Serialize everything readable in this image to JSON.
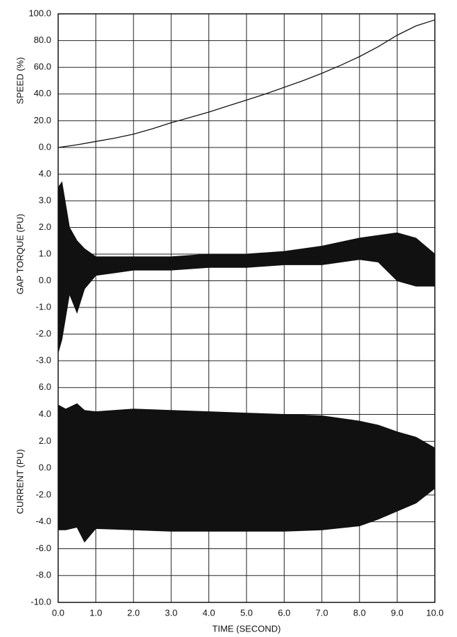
{
  "chart_data": [
    {
      "type": "line",
      "ylabel": "SPEED (%)",
      "xlim": [
        0,
        10
      ],
      "ylim": [
        0,
        100
      ],
      "yticks": [
        {
          "value": 0,
          "label": "0.0"
        },
        {
          "value": 20,
          "label": "20.0"
        },
        {
          "value": 40,
          "label": "40.0"
        },
        {
          "value": 60,
          "label": "60.0"
        },
        {
          "value": 80,
          "label": "80.0"
        },
        {
          "value": 100,
          "label": "100.0"
        }
      ],
      "x": [
        0,
        0.5,
        1,
        1.5,
        2,
        2.5,
        3,
        3.5,
        4,
        4.5,
        5,
        5.5,
        6,
        6.5,
        7,
        7.5,
        8,
        8.5,
        9,
        9.5,
        10
      ],
      "series": [
        {
          "color": "#111111",
          "values": [
            0,
            2,
            4.5,
            7,
            10,
            14,
            18.5,
            22.5,
            26.5,
            31,
            35.5,
            40,
            45,
            50,
            55.5,
            61.5,
            68,
            75.5,
            84,
            91,
            95.5
          ]
        }
      ],
      "grid": true
    },
    {
      "type": "area",
      "ylabel": "GAP TORQUE (PU)",
      "xlim": [
        0,
        10
      ],
      "ylim": [
        -3,
        5
      ],
      "yticks": [
        {
          "value": -3,
          "label": "-3.0"
        },
        {
          "value": -2,
          "label": "-2.0"
        },
        {
          "value": -1,
          "label": "-1.0"
        },
        {
          "value": 0,
          "label": "0.0"
        },
        {
          "value": 1,
          "label": "1.0"
        },
        {
          "value": 2,
          "label": "2.0"
        },
        {
          "value": 3,
          "label": "3.0"
        },
        {
          "value": 4,
          "label": "4.0"
        }
      ],
      "x": [
        0,
        0.1,
        0.3,
        0.5,
        0.7,
        1,
        1.5,
        2,
        3,
        4,
        5,
        6,
        7,
        8,
        8.5,
        9,
        9.5,
        10
      ],
      "series": [
        {
          "color": "#111111",
          "values": [
            3.5,
            3.7,
            2.0,
            1.5,
            1.2,
            0.9,
            0.9,
            0.9,
            0.9,
            1.0,
            1.0,
            1.1,
            1.3,
            1.6,
            1.7,
            1.8,
            1.6,
            1.0
          ]
        },
        {
          "color": "#111111",
          "values": [
            -2.7,
            -2.2,
            -0.5,
            -1.2,
            -0.3,
            0.2,
            0.3,
            0.4,
            0.4,
            0.5,
            0.5,
            0.6,
            0.6,
            0.8,
            0.7,
            0.0,
            -0.2,
            -0.2
          ]
        }
      ],
      "grid": true
    },
    {
      "type": "area",
      "ylabel": "CURRENT (PU)",
      "xlabel": "TIME (SECOND)",
      "xlim": [
        0,
        10
      ],
      "ylim": [
        -10,
        8
      ],
      "xticks": [
        {
          "value": 0,
          "label": "0.0"
        },
        {
          "value": 1,
          "label": "1.0"
        },
        {
          "value": 2,
          "label": "2.0"
        },
        {
          "value": 3,
          "label": "3.0"
        },
        {
          "value": 4,
          "label": "4.0"
        },
        {
          "value": 5,
          "label": "5.0"
        },
        {
          "value": 6,
          "label": "6.0"
        },
        {
          "value": 7,
          "label": "7.0"
        },
        {
          "value": 8,
          "label": "8.0"
        },
        {
          "value": 9,
          "label": "9.0"
        },
        {
          "value": 10,
          "label": "10.0"
        }
      ],
      "yticks": [
        {
          "value": -10,
          "label": "-10.0"
        },
        {
          "value": -8,
          "label": "-8.0"
        },
        {
          "value": -6,
          "label": "-6.0"
        },
        {
          "value": -4,
          "label": "-4.0"
        },
        {
          "value": -2,
          "label": "-2.0"
        },
        {
          "value": 0,
          "label": "0.0"
        },
        {
          "value": 2,
          "label": "2.0"
        },
        {
          "value": 4,
          "label": "4.0"
        },
        {
          "value": 6,
          "label": "6.0"
        }
      ],
      "x": [
        0,
        0.2,
        0.5,
        0.7,
        1,
        2,
        3,
        4,
        5,
        6,
        7,
        8,
        8.5,
        9,
        9.5,
        10
      ],
      "series": [
        {
          "color": "#111111",
          "values": [
            4.7,
            4.4,
            4.8,
            4.3,
            4.2,
            4.4,
            4.3,
            4.2,
            4.1,
            4.0,
            3.9,
            3.5,
            3.2,
            2.7,
            2.3,
            1.5
          ]
        },
        {
          "color": "#111111",
          "values": [
            -4.6,
            -4.6,
            -4.4,
            -5.5,
            -4.5,
            -4.6,
            -4.7,
            -4.7,
            -4.7,
            -4.7,
            -4.6,
            -4.3,
            -3.8,
            -3.2,
            -2.6,
            -1.5
          ]
        }
      ],
      "grid": true
    }
  ]
}
